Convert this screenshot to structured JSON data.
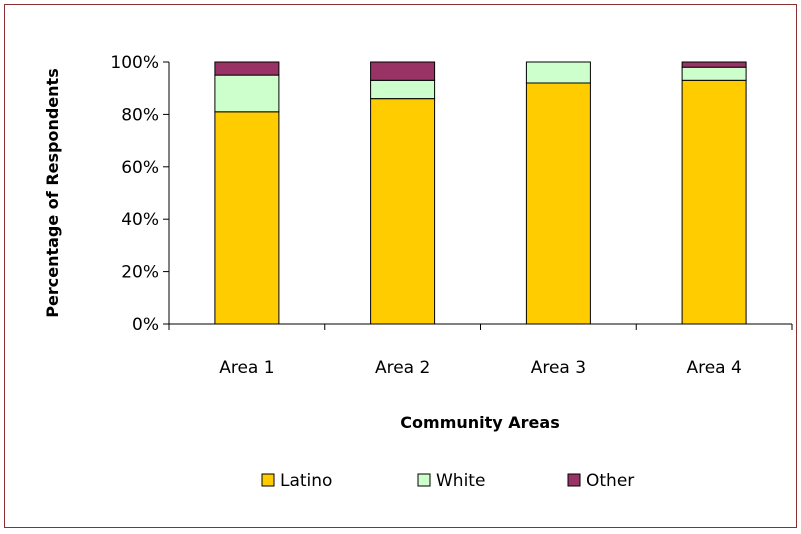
{
  "chart_data": {
    "type": "bar",
    "stacked": true,
    "categories": [
      "Area 1",
      "Area 2",
      "Area 3",
      "Area 4"
    ],
    "series": [
      {
        "name": "Latino",
        "values": [
          81,
          86,
          92,
          93
        ],
        "color": "#FFCC00"
      },
      {
        "name": "White",
        "values": [
          14,
          7,
          8,
          5
        ],
        "color": "#CCFFCC"
      },
      {
        "name": "Other",
        "values": [
          5,
          7,
          0,
          2
        ],
        "color": "#993366"
      }
    ],
    "title": "",
    "xlabel": "Community Areas",
    "ylabel": "Percentage of Respondents",
    "ylim": [
      0,
      100
    ],
    "yticks": [
      "0%",
      "20%",
      "40%",
      "60%",
      "80%",
      "100%"
    ],
    "grid": false,
    "legend_position": "bottom"
  }
}
